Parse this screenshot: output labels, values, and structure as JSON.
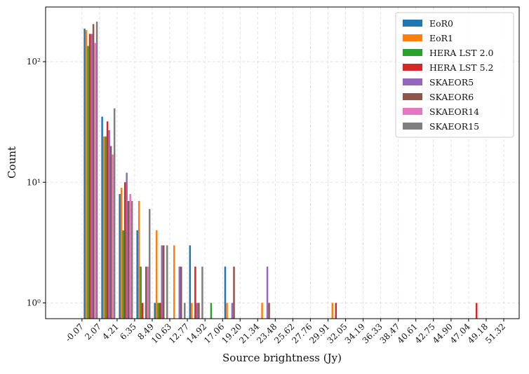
{
  "chart_data": {
    "type": "histogram",
    "xlabel": "Source brightness (Jy)",
    "ylabel": "Count",
    "log_y": true,
    "grid": true,
    "legend": "upper right",
    "bins": [
      -0.07,
      2.07,
      4.21,
      6.35,
      8.49,
      10.63,
      12.77,
      14.92,
      17.06,
      19.2,
      21.34,
      23.48,
      25.62,
      27.76,
      29.91,
      32.05,
      34.19,
      36.33,
      38.47,
      40.61,
      42.75,
      44.9,
      47.04,
      49.18,
      51.32
    ],
    "xlim": [
      -4.5,
      53.2
    ],
    "xticks": [
      -0.07,
      2.07,
      4.21,
      6.35,
      8.49,
      10.63,
      12.77,
      14.92,
      17.06,
      {
        "value": 19.2,
        "label": "19.20"
      },
      21.34,
      23.48,
      25.62,
      27.76,
      29.91,
      32.05,
      34.19,
      36.33,
      38.47,
      40.61,
      42.75,
      {
        "value": 44.9,
        "label": "44.90"
      },
      47.04,
      49.18,
      51.32
    ],
    "ylim": [
      0.74,
      284
    ],
    "yticks": [
      {
        "value": 1,
        "label": "10⁰"
      },
      {
        "value": 10,
        "label": "10¹"
      },
      {
        "value": 100,
        "label": "10²"
      }
    ],
    "series": [
      {
        "name": "EoR0",
        "color": "#1f77b4",
        "values": [
          188,
          35,
          8,
          4,
          1,
          0,
          3,
          0,
          2,
          0,
          0,
          0,
          0,
          0,
          0,
          0,
          0,
          0,
          0,
          0,
          0,
          0,
          0,
          0
        ]
      },
      {
        "name": "EoR1",
        "color": "#ff7f0e",
        "values": [
          183,
          24,
          9,
          7,
          4,
          3,
          1,
          0,
          1,
          0,
          1,
          0,
          0,
          0,
          1,
          0,
          0,
          0,
          0,
          0,
          0,
          0,
          0,
          0
        ]
      },
      {
        "name": "HERA LST 2.0",
        "color": "#2ca02c",
        "values": [
          135,
          24,
          4,
          2,
          1,
          0,
          0,
          1,
          0,
          0,
          0,
          0,
          0,
          0,
          0,
          0,
          0,
          0,
          0,
          0,
          0,
          0,
          0,
          0
        ]
      },
      {
        "name": "HERA LST 5.2",
        "color": "#d62728",
        "values": [
          170,
          32,
          10,
          1,
          1,
          0,
          2,
          0,
          0,
          0,
          0,
          0,
          0,
          0,
          1,
          0,
          0,
          0,
          0,
          0,
          0,
          0,
          1,
          0
        ]
      },
      {
        "name": "SKAEOR5",
        "color": "#9467bd",
        "values": [
          170,
          27,
          12,
          0,
          3,
          2,
          1,
          0,
          1,
          0,
          2,
          0,
          0,
          0,
          0,
          0,
          0,
          0,
          0,
          0,
          0,
          0,
          0,
          0
        ]
      },
      {
        "name": "SKAEOR6",
        "color": "#8c564b",
        "values": [
          205,
          20,
          7,
          2,
          3,
          2,
          1,
          0,
          2,
          0,
          1,
          0,
          0,
          0,
          0,
          0,
          0,
          0,
          0,
          0,
          0,
          0,
          0,
          0
        ]
      },
      {
        "name": "SKAEOR14",
        "color": "#e377c2",
        "values": [
          143,
          17,
          8,
          2,
          0,
          0,
          0,
          0,
          0,
          0,
          0,
          0,
          0,
          0,
          0,
          0,
          0,
          0,
          0,
          0,
          0,
          0,
          0,
          0
        ]
      },
      {
        "name": "SKAEOR15",
        "color": "#7f7f7f",
        "values": [
          215,
          41,
          7,
          6,
          3,
          1,
          2,
          0,
          0,
          0,
          0,
          0,
          0,
          0,
          0,
          0,
          0,
          0,
          0,
          0,
          0,
          0,
          0,
          0
        ]
      }
    ]
  }
}
